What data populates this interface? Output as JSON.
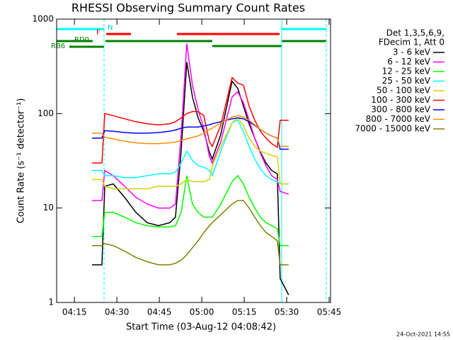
{
  "chart_data": {
    "type": "line",
    "title": "RHESSI Observing Summary Count Rates",
    "x_label": "Start Time (03-Aug-12 04:08:42)",
    "y_label": "Count Rate (s⁻¹ detector⁻¹)",
    "legend_header": [
      "Det 1,3,5,6,9,",
      "FDecim 1, Att 0"
    ],
    "flags": [
      "N",
      "F",
      "RD0",
      "RB6"
    ],
    "timestamp": "24-Oct-2021 14:55",
    "log_y": true,
    "xlim": [
      0,
      96.8
    ],
    "ylim": [
      1,
      1000
    ],
    "xticks": [
      {
        "value": 6.3,
        "label": "04:15"
      },
      {
        "value": 21.3,
        "label": "04:30"
      },
      {
        "value": 36.3,
        "label": "04:45"
      },
      {
        "value": 51.3,
        "label": "05:00"
      },
      {
        "value": 66.3,
        "label": "05:15"
      },
      {
        "value": 81.3,
        "label": "05:30"
      },
      {
        "value": 96.3,
        "label": "05:45"
      }
    ],
    "yticks": [
      1,
      10,
      100,
      1000
    ],
    "x": [
      12.5,
      16,
      17,
      20,
      24,
      28,
      32,
      36,
      40,
      42,
      44,
      46,
      48,
      50,
      52,
      54,
      55,
      58,
      62,
      64,
      66,
      68,
      70,
      72,
      74,
      76,
      78,
      79,
      82
    ],
    "series": [
      {
        "name": "3 - 6 keV",
        "color": "#000000",
        "values": [
          2.5,
          2.5,
          17,
          18,
          13,
          9,
          7,
          6.5,
          7,
          8,
          40,
          350,
          150,
          90,
          65,
          39,
          33,
          60,
          220,
          185,
          120,
          78,
          55,
          39,
          30,
          25,
          23,
          1.8,
          1.2
        ]
      },
      {
        "name": "6 - 12 keV",
        "color": "#ff00ff",
        "values": [
          12,
          12,
          25,
          22,
          17,
          13,
          11,
          10,
          10,
          11,
          60,
          550,
          200,
          110,
          70,
          35,
          30,
          50,
          150,
          170,
          130,
          85,
          55,
          38,
          28,
          22,
          20,
          15,
          14
        ]
      },
      {
        "name": "12 - 25 keV",
        "color": "#00ff00",
        "values": [
          5,
          5,
          9,
          9,
          8,
          7,
          6.5,
          6.3,
          6.3,
          6.5,
          9,
          22,
          11,
          9,
          8,
          8,
          8,
          11,
          19,
          22,
          18,
          13,
          10,
          8,
          7,
          6.5,
          6,
          4,
          4
        ]
      },
      {
        "name": "25 - 50 keV",
        "color": "#00ffff",
        "values": [
          25,
          25,
          22,
          22,
          21,
          21,
          22,
          23,
          23,
          24,
          30,
          40,
          32,
          28,
          27,
          25,
          22,
          40,
          80,
          85,
          65,
          45,
          33,
          26,
          22,
          20,
          19,
          18,
          18
        ]
      },
      {
        "name": "50 - 100 keV",
        "color": "#d4d400",
        "values": [
          20,
          20,
          17,
          16,
          16,
          16,
          16,
          17,
          17,
          17,
          18,
          20,
          19,
          19,
          19,
          20,
          28,
          45,
          80,
          90,
          75,
          55,
          45,
          40,
          38,
          36,
          35,
          18,
          18
        ]
      },
      {
        "name": "100 - 300 keV",
        "color": "#ff0000",
        "values": [
          30,
          30,
          100,
          95,
          88,
          82,
          78,
          76,
          78,
          82,
          90,
          100,
          105,
          105,
          95,
          50,
          45,
          75,
          240,
          210,
          200,
          120,
          85,
          65,
          55,
          48,
          44,
          85,
          85
        ]
      },
      {
        "name": "300 - 800 keV",
        "color": "#0000ff",
        "values": [
          55,
          55,
          66,
          65,
          63,
          62,
          62,
          63,
          65,
          67,
          70,
          72,
          72,
          72,
          74,
          76,
          78,
          82,
          88,
          90,
          88,
          82,
          75,
          68,
          62,
          58,
          55,
          42,
          42
        ]
      },
      {
        "name": "800 - 7000 keV",
        "color": "#ff8c00",
        "values": [
          62,
          62,
          56,
          54,
          51,
          49,
          48,
          48,
          49,
          50,
          52,
          54,
          56,
          58,
          62,
          68,
          70,
          80,
          92,
          95,
          92,
          85,
          76,
          68,
          62,
          58,
          55,
          45,
          45
        ]
      },
      {
        "name": "7000 - 15000 keV",
        "color": "#808000",
        "values": [
          4,
          4,
          4.2,
          4,
          3.5,
          3,
          2.7,
          2.5,
          2.5,
          2.6,
          2.8,
          3.2,
          3.8,
          4.5,
          5.5,
          6.5,
          7,
          8.5,
          11,
          12,
          12,
          10,
          8,
          6.5,
          5.5,
          5,
          4.5,
          2.5,
          2.5
        ]
      }
    ]
  }
}
